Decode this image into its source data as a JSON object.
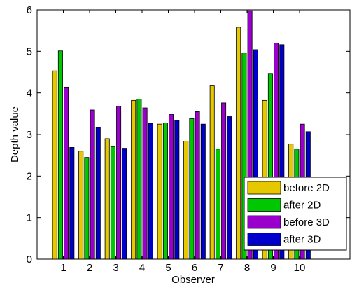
{
  "chart_data": {
    "type": "bar",
    "title": "",
    "xlabel": "Observer",
    "ylabel": "Depth value",
    "ylim": [
      0,
      6
    ],
    "yticks": [
      0,
      1,
      2,
      3,
      4,
      5,
      6
    ],
    "categories": [
      "1",
      "2",
      "3",
      "4",
      "5",
      "6",
      "7",
      "8",
      "9",
      "10"
    ],
    "grid": false,
    "legend_position": "bottom-right",
    "series": [
      {
        "name": "before 2D",
        "color": "#e6c800",
        "values": [
          4.53,
          2.6,
          2.9,
          3.82,
          3.25,
          2.84,
          4.17,
          5.58,
          3.82,
          2.77
        ]
      },
      {
        "name": "after 2D",
        "color": "#00c800",
        "values": [
          5.01,
          2.45,
          2.71,
          3.85,
          3.28,
          3.38,
          2.65,
          4.96,
          4.47,
          2.65
        ]
      },
      {
        "name": "before 3D",
        "color": "#9900cc",
        "values": [
          4.14,
          3.59,
          3.68,
          3.64,
          3.48,
          3.55,
          3.76,
          5.98,
          5.2,
          3.25
        ]
      },
      {
        "name": "after 3D",
        "color": "#0000cc",
        "values": [
          2.69,
          3.17,
          2.67,
          3.27,
          3.34,
          3.25,
          3.43,
          5.04,
          5.16,
          3.07
        ]
      }
    ]
  }
}
